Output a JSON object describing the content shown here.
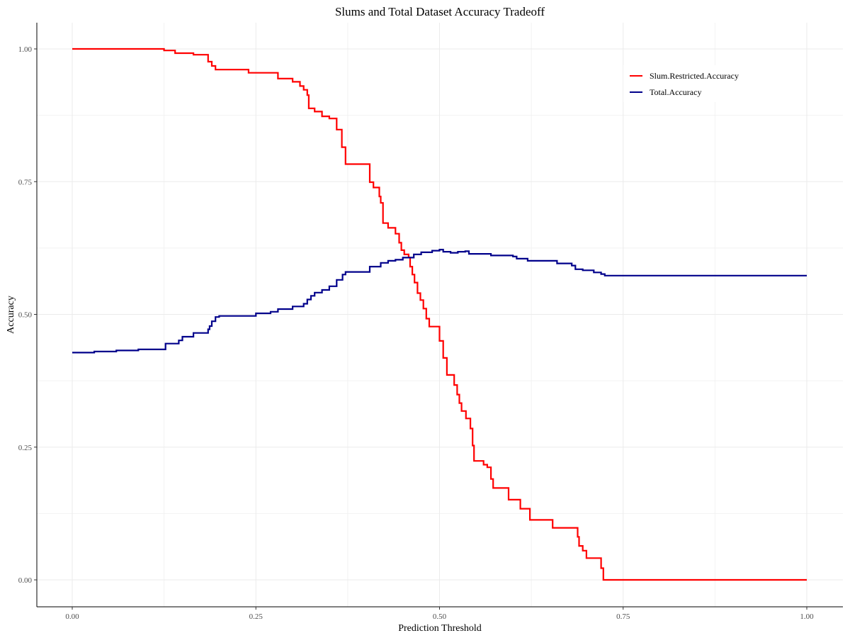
{
  "chart_data": {
    "type": "line",
    "title": "Slums and Total Dataset Accuracy Tradeoff",
    "xlabel": "Prediction Threshold",
    "ylabel": "Accuracy",
    "xlim": [
      0,
      1
    ],
    "ylim": [
      0,
      1
    ],
    "x_ticks": [
      "0.00",
      "0.25",
      "0.50",
      "0.75",
      "1.00"
    ],
    "y_ticks": [
      "0.00",
      "0.25",
      "0.50",
      "0.75",
      "1.00"
    ],
    "grid": true,
    "legend_position": "top-right",
    "series": [
      {
        "name": "Slum.Restricted.Accuracy",
        "color": "#ff0000",
        "step": true,
        "points": [
          [
            0.0,
            1.0
          ],
          [
            0.125,
            0.997
          ],
          [
            0.14,
            0.992
          ],
          [
            0.165,
            0.989
          ],
          [
            0.185,
            0.976
          ],
          [
            0.19,
            0.968
          ],
          [
            0.195,
            0.961
          ],
          [
            0.24,
            0.955
          ],
          [
            0.28,
            0.944
          ],
          [
            0.3,
            0.938
          ],
          [
            0.31,
            0.93
          ],
          [
            0.315,
            0.923
          ],
          [
            0.32,
            0.913
          ],
          [
            0.322,
            0.888
          ],
          [
            0.33,
            0.882
          ],
          [
            0.34,
            0.873
          ],
          [
            0.35,
            0.869
          ],
          [
            0.36,
            0.848
          ],
          [
            0.367,
            0.815
          ],
          [
            0.372,
            0.783
          ],
          [
            0.405,
            0.749
          ],
          [
            0.41,
            0.739
          ],
          [
            0.418,
            0.722
          ],
          [
            0.42,
            0.71
          ],
          [
            0.423,
            0.672
          ],
          [
            0.43,
            0.663
          ],
          [
            0.44,
            0.652
          ],
          [
            0.445,
            0.635
          ],
          [
            0.448,
            0.621
          ],
          [
            0.452,
            0.613
          ],
          [
            0.458,
            0.607
          ],
          [
            0.46,
            0.59
          ],
          [
            0.463,
            0.575
          ],
          [
            0.466,
            0.56
          ],
          [
            0.47,
            0.54
          ],
          [
            0.474,
            0.527
          ],
          [
            0.478,
            0.511
          ],
          [
            0.482,
            0.492
          ],
          [
            0.486,
            0.477
          ],
          [
            0.5,
            0.45
          ],
          [
            0.505,
            0.418
          ],
          [
            0.51,
            0.386
          ],
          [
            0.52,
            0.367
          ],
          [
            0.524,
            0.349
          ],
          [
            0.527,
            0.333
          ],
          [
            0.53,
            0.318
          ],
          [
            0.536,
            0.304
          ],
          [
            0.542,
            0.285
          ],
          [
            0.545,
            0.253
          ],
          [
            0.547,
            0.224
          ],
          [
            0.56,
            0.217
          ],
          [
            0.565,
            0.212
          ],
          [
            0.57,
            0.19
          ],
          [
            0.573,
            0.173
          ],
          [
            0.594,
            0.151
          ],
          [
            0.61,
            0.134
          ],
          [
            0.623,
            0.113
          ],
          [
            0.654,
            0.098
          ],
          [
            0.688,
            0.081
          ],
          [
            0.69,
            0.064
          ],
          [
            0.695,
            0.055
          ],
          [
            0.7,
            0.041
          ],
          [
            0.72,
            0.022
          ],
          [
            0.723,
            0.0
          ],
          [
            1.0,
            0.0
          ]
        ]
      },
      {
        "name": "Total.Accuracy",
        "color": "#00008b",
        "step": true,
        "points": [
          [
            0.0,
            0.428
          ],
          [
            0.03,
            0.43
          ],
          [
            0.06,
            0.432
          ],
          [
            0.09,
            0.434
          ],
          [
            0.127,
            0.445
          ],
          [
            0.145,
            0.451
          ],
          [
            0.15,
            0.458
          ],
          [
            0.165,
            0.465
          ],
          [
            0.185,
            0.472
          ],
          [
            0.187,
            0.478
          ],
          [
            0.19,
            0.487
          ],
          [
            0.195,
            0.495
          ],
          [
            0.2,
            0.497
          ],
          [
            0.25,
            0.502
          ],
          [
            0.27,
            0.505
          ],
          [
            0.28,
            0.51
          ],
          [
            0.3,
            0.515
          ],
          [
            0.315,
            0.52
          ],
          [
            0.32,
            0.528
          ],
          [
            0.325,
            0.535
          ],
          [
            0.33,
            0.541
          ],
          [
            0.34,
            0.546
          ],
          [
            0.35,
            0.553
          ],
          [
            0.36,
            0.565
          ],
          [
            0.368,
            0.575
          ],
          [
            0.372,
            0.58
          ],
          [
            0.405,
            0.59
          ],
          [
            0.42,
            0.597
          ],
          [
            0.43,
            0.601
          ],
          [
            0.44,
            0.603
          ],
          [
            0.45,
            0.607
          ],
          [
            0.465,
            0.613
          ],
          [
            0.475,
            0.617
          ],
          [
            0.49,
            0.62
          ],
          [
            0.5,
            0.622
          ],
          [
            0.505,
            0.618
          ],
          [
            0.515,
            0.616
          ],
          [
            0.525,
            0.618
          ],
          [
            0.535,
            0.619
          ],
          [
            0.54,
            0.614
          ],
          [
            0.57,
            0.611
          ],
          [
            0.6,
            0.609
          ],
          [
            0.605,
            0.605
          ],
          [
            0.62,
            0.601
          ],
          [
            0.66,
            0.596
          ],
          [
            0.68,
            0.592
          ],
          [
            0.685,
            0.585
          ],
          [
            0.695,
            0.583
          ],
          [
            0.71,
            0.579
          ],
          [
            0.72,
            0.576
          ],
          [
            0.725,
            0.573
          ],
          [
            1.0,
            0.573
          ]
        ]
      }
    ]
  }
}
